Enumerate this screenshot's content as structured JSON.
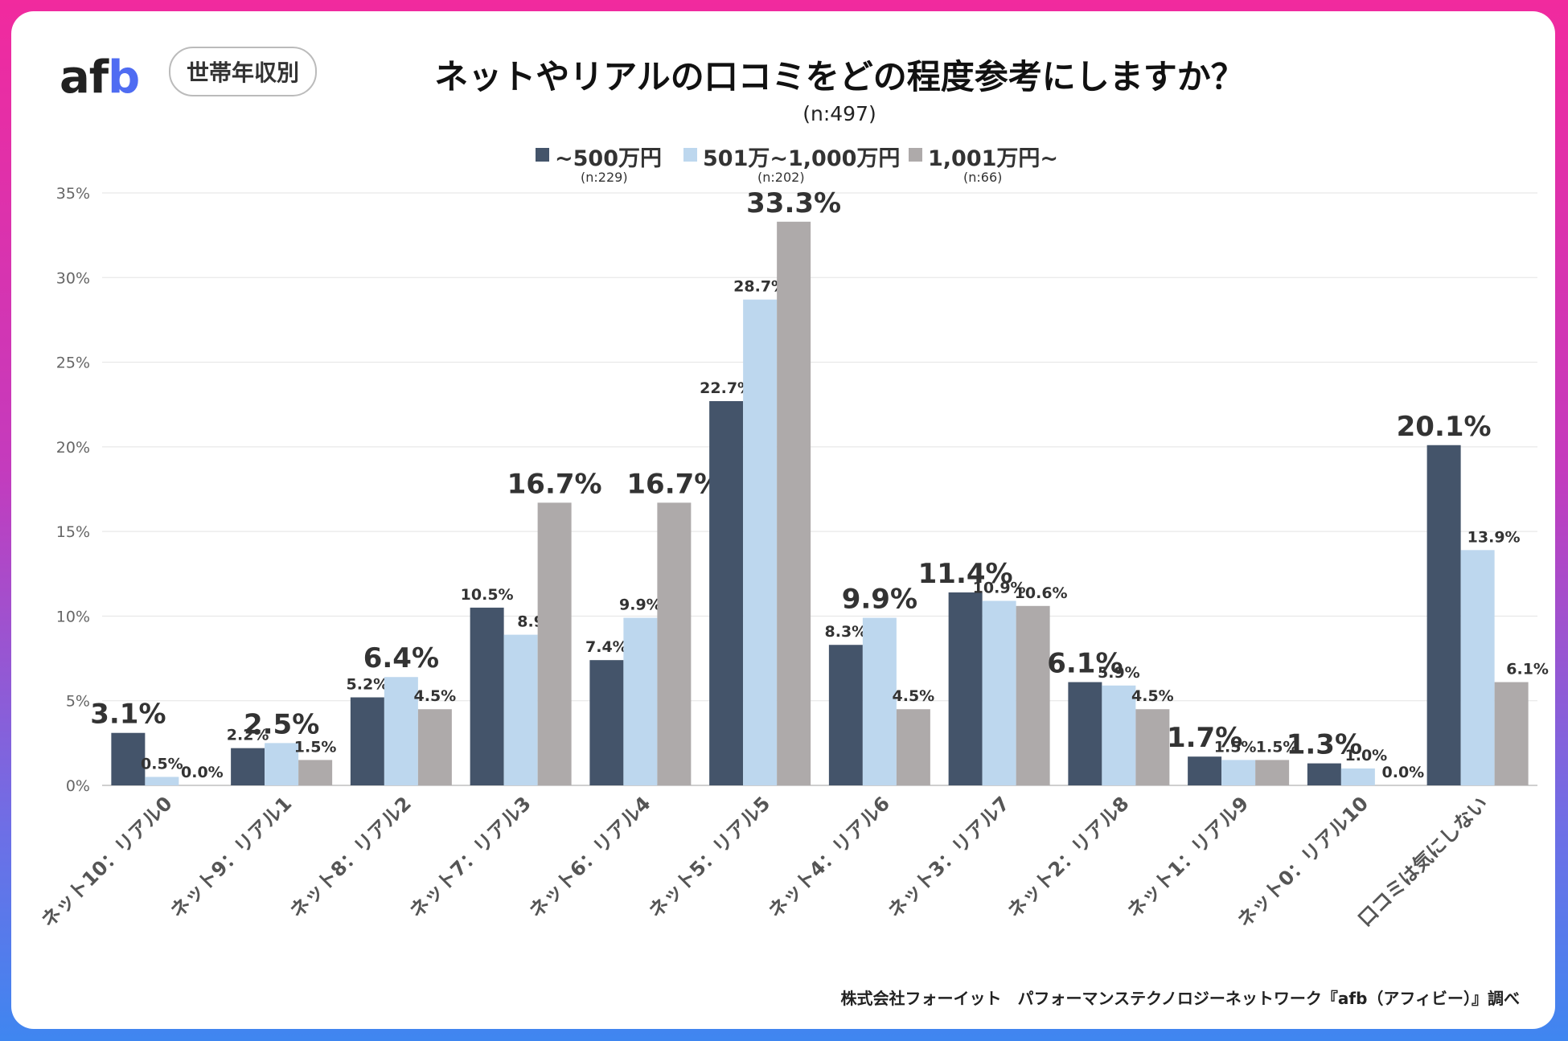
{
  "brand": {
    "logo_text_a": "af",
    "logo_text_b": "b",
    "badge": "世帯年収別"
  },
  "header": {
    "title": "ネットやリアルの口コミをどの程度参考にしますか？",
    "subtitle": "(n:497)"
  },
  "legend": [
    {
      "label": "~500万円",
      "n": "(n:229)",
      "color": "#44546a"
    },
    {
      "label": "501万~1,000万円",
      "n": "(n:202)",
      "color": "#bdd7ee"
    },
    {
      "label": "1,001万円~",
      "n": "(n:66)",
      "color": "#aeaaaa"
    }
  ],
  "footer": {
    "credit": "株式会社フォーイット　パフォーマンステクノロジーネットワーク『afb（アフィビー）』調べ"
  },
  "chart_data": {
    "type": "bar",
    "title": "ネットやリアルの口コミをどの程度参考にしますか？",
    "ylim": [
      0,
      35
    ],
    "yticks": [
      0,
      5,
      10,
      15,
      20,
      25,
      30,
      35
    ],
    "ytick_labels": [
      "0%",
      "5%",
      "10%",
      "15%",
      "20%",
      "25%",
      "30%",
      "35%"
    ],
    "grid": true,
    "legend_position": "top-center",
    "categories": [
      "ネット10：リアル0",
      "ネット9：リアル1",
      "ネット8：リアル2",
      "ネット7：リアル3",
      "ネット6：リアル4",
      "ネット5：リアル5",
      "ネット4：リアル6",
      "ネット3：リアル7",
      "ネット2：リアル8",
      "ネット1：リアル9",
      "ネット0：リアル10",
      "口コミは気にしない"
    ],
    "series": [
      {
        "name": "~500万円",
        "color": "#44546a",
        "values": [
          3.1,
          2.2,
          5.2,
          10.5,
          7.4,
          22.7,
          8.3,
          11.4,
          6.1,
          1.7,
          1.3,
          20.1
        ],
        "labels": [
          "3.1%",
          "2.2%",
          "5.2%",
          "10.5%",
          "7.4%",
          "22.7%",
          "8.3%",
          "11.4%",
          "6.1%",
          "1.7%",
          "1.3%",
          "20.1%"
        ]
      },
      {
        "name": "501万~1,000万円",
        "color": "#bdd7ee",
        "values": [
          0.5,
          2.5,
          6.4,
          8.9,
          9.9,
          28.7,
          9.9,
          10.9,
          5.9,
          1.5,
          1.0,
          13.9
        ],
        "labels": [
          "0.5%",
          "2.5%",
          "6.4%",
          "8.9%",
          "9.9%",
          "28.7%",
          "9.9%",
          "10.9%",
          "5.9%",
          "1.5%",
          "1.0%",
          "13.9%"
        ]
      },
      {
        "name": "1,001万円~",
        "color": "#aeaaaa",
        "values": [
          0.0,
          1.5,
          4.5,
          16.7,
          16.7,
          33.3,
          4.5,
          10.6,
          4.5,
          1.5,
          0.0,
          6.1
        ],
        "labels": [
          "0.0%",
          "1.5%",
          "4.5%",
          "16.7%",
          "16.7%",
          "33.3%",
          "4.5%",
          "10.6%",
          "4.5%",
          "1.5%",
          "0.0%",
          "6.1%"
        ]
      }
    ],
    "highlighted_labels": [
      {
        "series": 0,
        "category": 0,
        "color": "#44546a"
      },
      {
        "series": 1,
        "category": 1,
        "color": "#5b8fc7"
      },
      {
        "series": 1,
        "category": 2,
        "color": "#5b8fc7"
      },
      {
        "series": 2,
        "category": 3,
        "color": "#7f7f7f"
      },
      {
        "series": 2,
        "category": 4,
        "color": "#7f7f7f"
      },
      {
        "series": 2,
        "category": 5,
        "color": "#7f7f7f"
      },
      {
        "series": 1,
        "category": 6,
        "color": "#5b8fc7"
      },
      {
        "series": 0,
        "category": 7,
        "color": "#44546a"
      },
      {
        "series": 0,
        "category": 8,
        "color": "#44546a"
      },
      {
        "series": 0,
        "category": 9,
        "color": "#44546a"
      },
      {
        "series": 0,
        "category": 10,
        "color": "#44546a"
      },
      {
        "series": 0,
        "category": 11,
        "color": "#44546a"
      }
    ]
  }
}
